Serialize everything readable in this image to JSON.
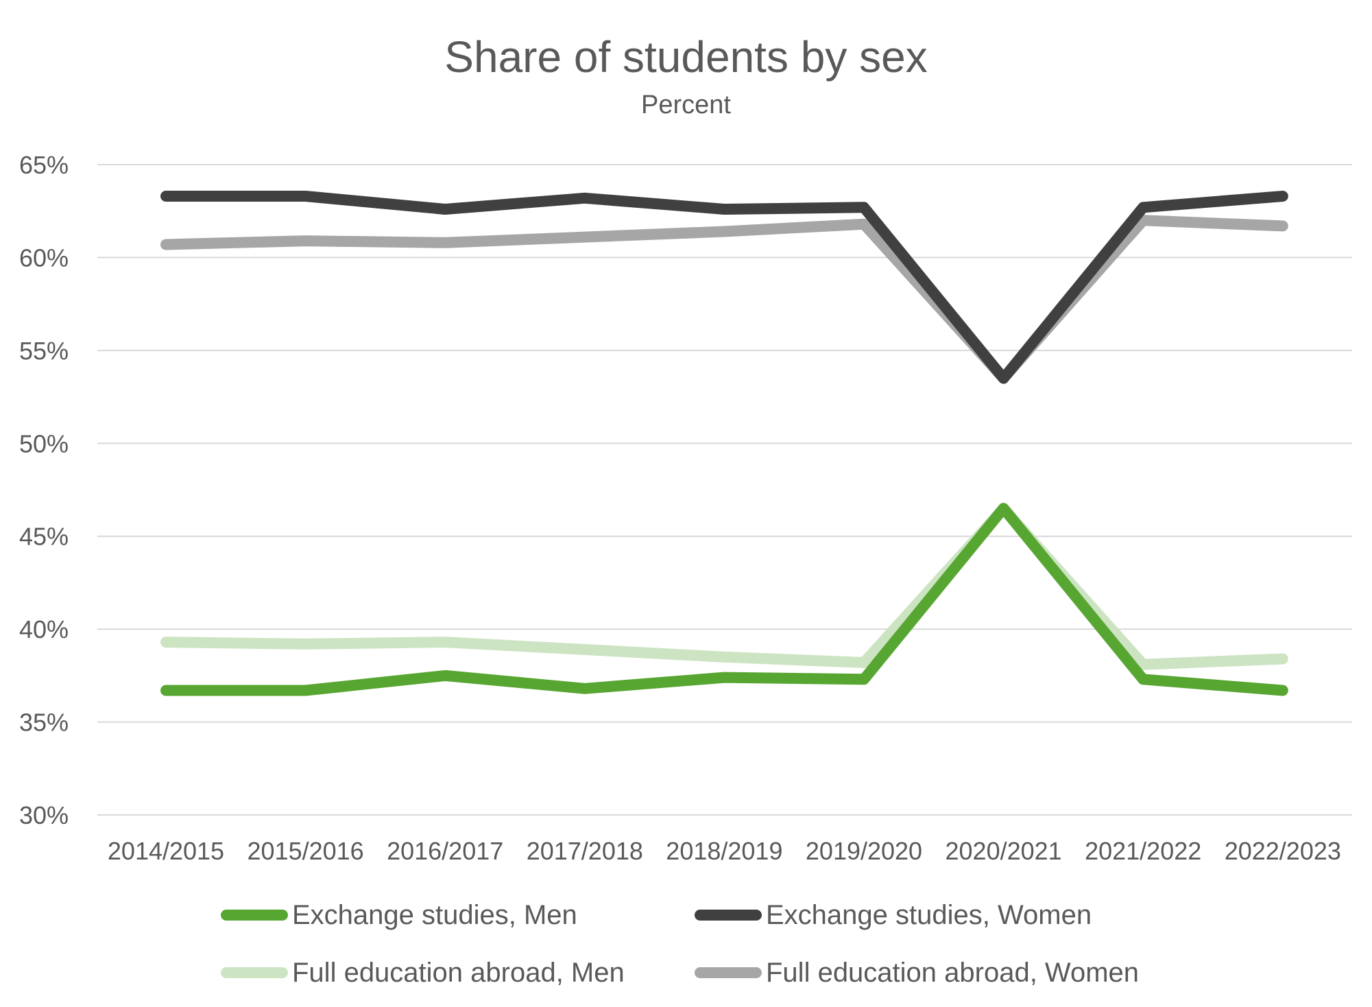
{
  "chart_data": {
    "type": "line",
    "title": "Share of students by sex",
    "subtitle": "Percent",
    "categories": [
      "2014/2015",
      "2015/2016",
      "2016/2017",
      "2017/2018",
      "2018/2019",
      "2019/2020",
      "2020/2021",
      "2021/2022",
      "2022/2023"
    ],
    "ylim": [
      30,
      65
    ],
    "y_ticks": [
      30,
      35,
      40,
      45,
      50,
      55,
      60,
      65
    ],
    "y_tick_labels": [
      "30%",
      "35%",
      "40%",
      "45%",
      "50%",
      "55%",
      "60%",
      "65%"
    ],
    "grid": true,
    "legend_position": "bottom",
    "series": [
      {
        "name": "Exchange studies, Men",
        "color": "#57a632",
        "values": [
          36.7,
          36.7,
          37.5,
          36.8,
          37.4,
          37.3,
          46.5,
          37.3,
          36.7
        ]
      },
      {
        "name": "Exchange studies, Women",
        "color": "#404040",
        "values": [
          63.3,
          63.3,
          62.6,
          63.2,
          62.6,
          62.7,
          53.5,
          62.7,
          63.3
        ]
      },
      {
        "name": "Full education abroad, Men",
        "color": "#cde4c3",
        "values": [
          39.3,
          39.2,
          39.3,
          38.9,
          38.5,
          38.2,
          46.5,
          38.1,
          38.4
        ]
      },
      {
        "name": "Full education abroad, Women",
        "color": "#a6a6a6",
        "values": [
          60.7,
          60.9,
          60.8,
          61.1,
          61.4,
          61.8,
          53.5,
          62.0,
          61.7
        ]
      }
    ]
  }
}
